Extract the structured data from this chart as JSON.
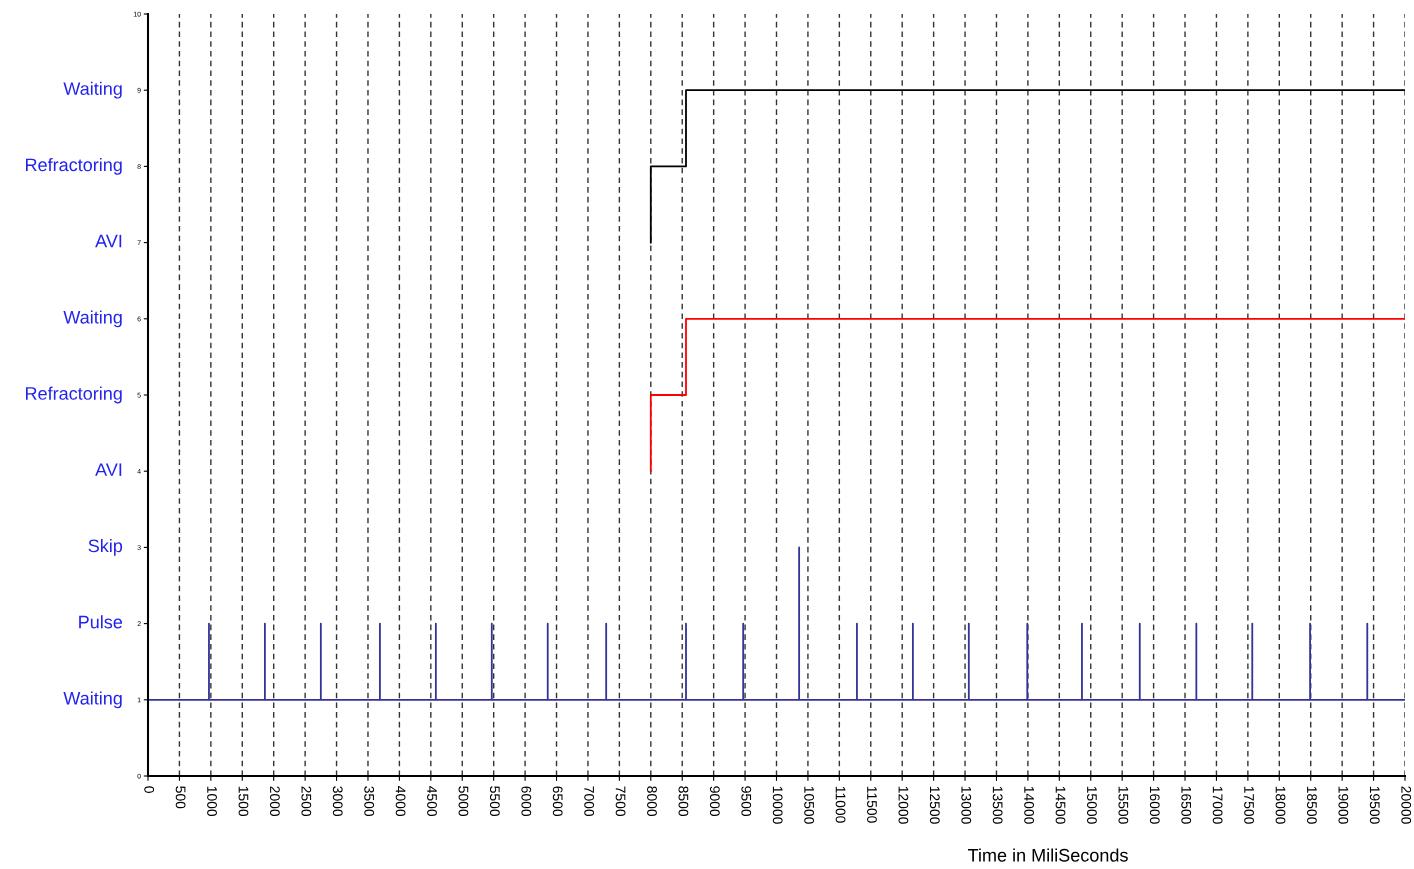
{
  "chart_data": {
    "type": "line",
    "xlabel": "Time in MiliSeconds",
    "xlim": [
      0,
      20000
    ],
    "xticks": [
      0,
      500,
      1000,
      1500,
      2000,
      2500,
      3000,
      3500,
      4000,
      4500,
      5000,
      5500,
      6000,
      6500,
      7000,
      7500,
      8000,
      8500,
      9000,
      9500,
      10000,
      10500,
      11000,
      11500,
      12000,
      12500,
      13000,
      13500,
      14000,
      14500,
      15000,
      15500,
      16000,
      16500,
      17000,
      17500,
      18000,
      18500,
      19000,
      19500,
      20000
    ],
    "ylim": [
      0,
      10
    ],
    "yticks": [
      0,
      1,
      2,
      3,
      4,
      5,
      6,
      7,
      8,
      9,
      10
    ],
    "annotations": [
      "Waiting",
      "Refractoring",
      "AVI",
      "Waiting",
      "Refractoring",
      "AVI",
      "Skip",
      "Pulse",
      "Waiting"
    ],
    "grid": "x",
    "line_style": "solid",
    "marker": "none",
    "series": [
      {
        "color": "#000000",
        "x": [
          8000,
          8000,
          8560,
          8560,
          20000
        ],
        "values": [
          7,
          8,
          8,
          9,
          9
        ]
      },
      {
        "color": "#ff0000",
        "x": [
          8000,
          8000,
          8560,
          8560,
          20000
        ],
        "values": [
          4,
          5,
          5,
          6,
          6
        ]
      },
      {
        "color": "#333399",
        "x": [
          0,
          970,
          970,
          970,
          1860,
          1860,
          1860,
          2750,
          2750,
          2750,
          3690,
          3690,
          3690,
          4580,
          4580,
          4580,
          5470,
          5470,
          5470,
          6360,
          6360,
          6360,
          7290,
          7290,
          7290,
          8560,
          8560,
          8560,
          9470,
          9470,
          9470,
          10360,
          10360,
          10360,
          11280,
          11280,
          11280,
          12170,
          12170,
          12170,
          13060,
          13060,
          13060,
          13990,
          13990,
          13990,
          14860,
          14860,
          14860,
          15780,
          15780,
          15780,
          16680,
          16680,
          16680,
          17570,
          17570,
          17570,
          18490,
          18490,
          18490,
          19400,
          19400,
          19400,
          20000
        ],
        "values": [
          1,
          1,
          2,
          1,
          1,
          2,
          1,
          1,
          2,
          1,
          1,
          2,
          1,
          1,
          2,
          1,
          1,
          2,
          1,
          1,
          2,
          1,
          1,
          2,
          1,
          1,
          2,
          1,
          1,
          2,
          1,
          1,
          3,
          1,
          1,
          2,
          1,
          1,
          2,
          1,
          1,
          2,
          1,
          1,
          2,
          1,
          1,
          2,
          1,
          1,
          2,
          1,
          1,
          2,
          1,
          1,
          2,
          1,
          1,
          2,
          1,
          1,
          2,
          1,
          1
        ]
      }
    ]
  }
}
